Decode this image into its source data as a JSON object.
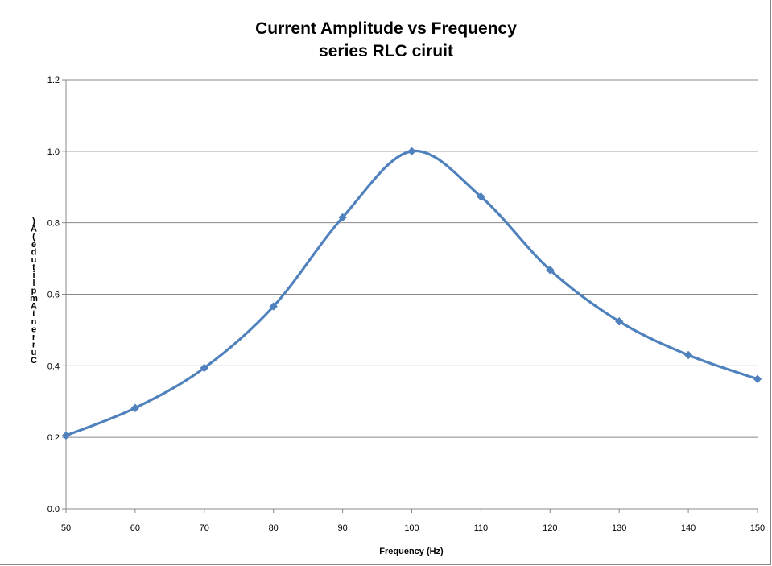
{
  "chart_data": {
    "type": "line",
    "title": "Current Amplitude vs Frequency",
    "subtitle": "series RLC ciruit",
    "xlabel": "Frequency (Hz)",
    "ylabel": "Current Amplitude (A)",
    "xlim": [
      50,
      150
    ],
    "ylim": [
      0,
      1.2
    ],
    "x_ticks": [
      "50",
      "60",
      "70",
      "80",
      "90",
      "100",
      "110",
      "120",
      "130",
      "140",
      "150"
    ],
    "y_ticks": [
      "0.0",
      "0.2",
      "0.4",
      "0.6",
      "0.8",
      "1.0",
      "1.2"
    ],
    "grid": "horizontal",
    "legend": "none",
    "series": [
      {
        "color": "#4f81bd",
        "marker": "diamond",
        "smooth": true,
        "x": [
          50,
          60,
          70,
          80,
          90,
          100,
          110,
          120,
          130,
          140,
          150
        ],
        "y": [
          0.205,
          0.282,
          0.394,
          0.566,
          0.815,
          1.0,
          0.873,
          0.668,
          0.524,
          0.43,
          0.363
        ]
      }
    ]
  }
}
